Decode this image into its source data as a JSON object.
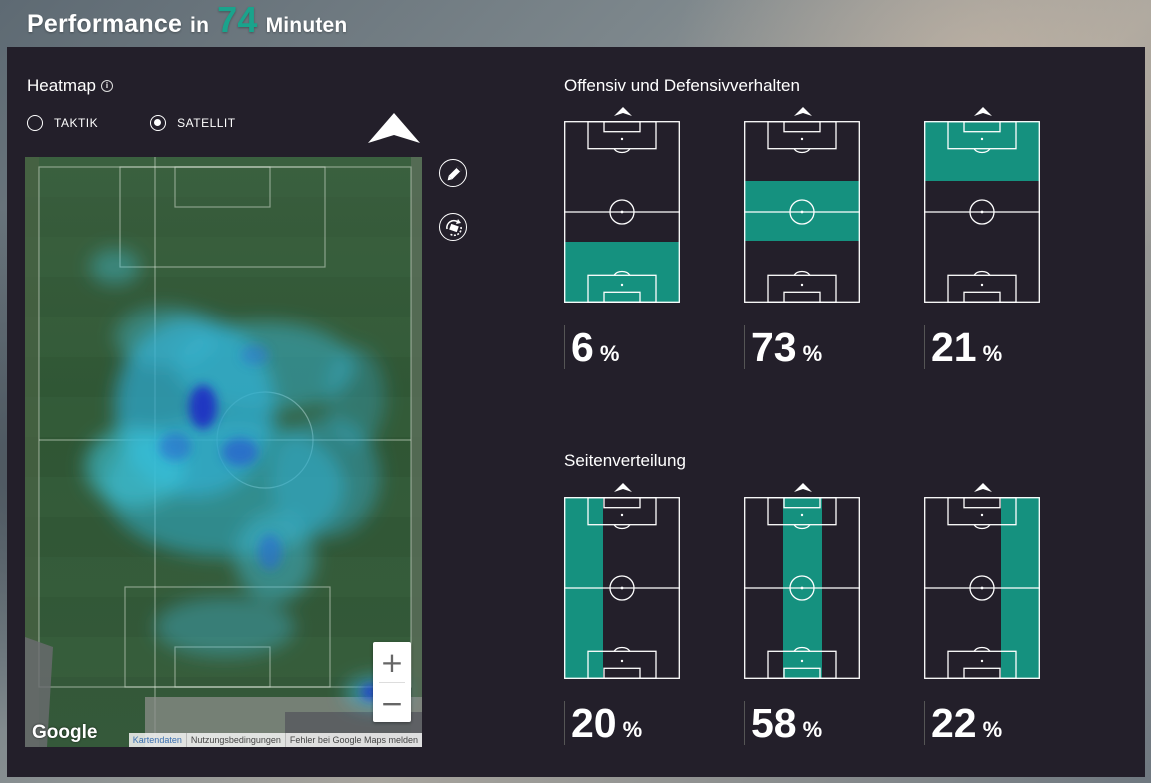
{
  "header": {
    "title_prefix": "Performance",
    "title_in": "in",
    "minutes": "74",
    "minutes_label": "Minuten"
  },
  "heatmap": {
    "title": "Heatmap",
    "info_icon": "i",
    "radio_options": [
      {
        "label": "TAKTIK",
        "checked": false
      },
      {
        "label": "SATELLIT",
        "checked": true
      }
    ],
    "zoom_in": "+",
    "zoom_out": "−",
    "google_logo": "Google",
    "footer_links": [
      "Kartendaten",
      "Nutzungsbedingungen",
      "Fehler bei Google Maps melden"
    ],
    "tools": [
      "pencil-icon",
      "rotate-icon"
    ]
  },
  "offensive": {
    "title": "Offensiv und Defensivverhalten",
    "zones": [
      {
        "zone": "defense",
        "value": "6",
        "unit": "%"
      },
      {
        "zone": "midfield",
        "value": "73",
        "unit": "%"
      },
      {
        "zone": "attack",
        "value": "21",
        "unit": "%"
      }
    ]
  },
  "sides": {
    "title": "Seitenverteilung",
    "zones": [
      {
        "zone": "left",
        "value": "20",
        "unit": "%"
      },
      {
        "zone": "center",
        "value": "58",
        "unit": "%"
      },
      {
        "zone": "right",
        "value": "22",
        "unit": "%"
      }
    ]
  },
  "colors": {
    "accent": "#1aa38c",
    "panel": "#231f2a",
    "zone_fill": "#15917f"
  }
}
